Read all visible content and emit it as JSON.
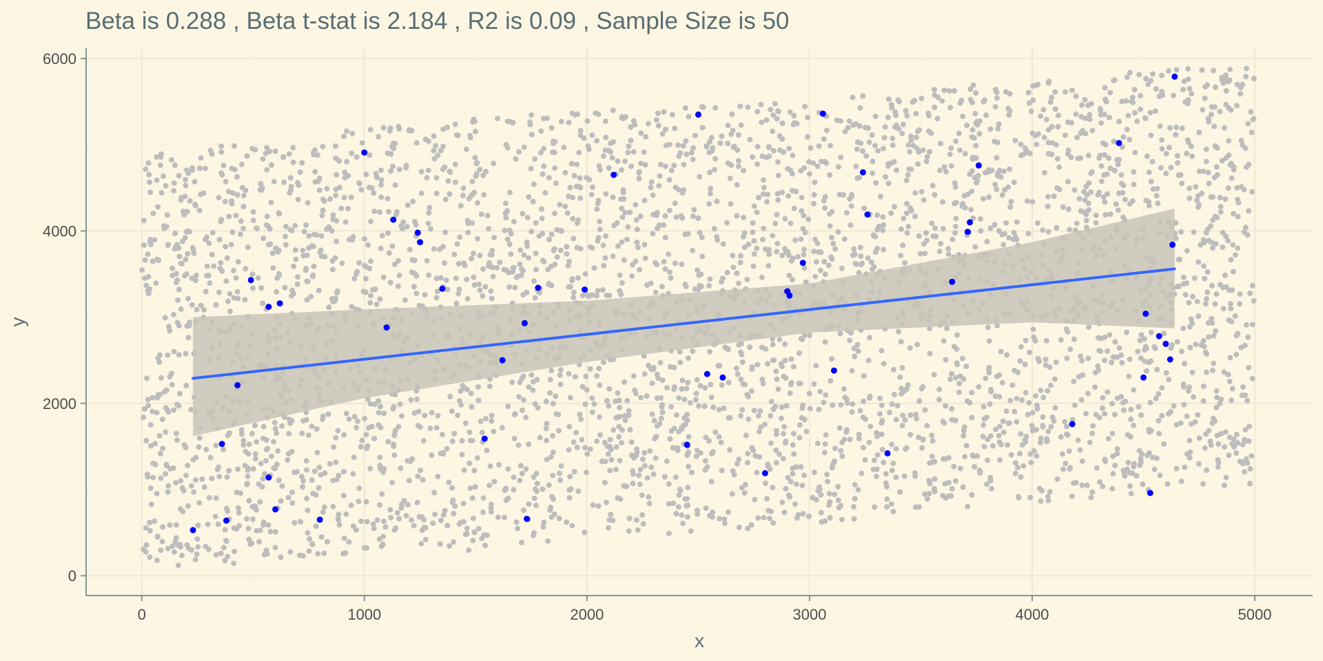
{
  "chart_data": {
    "type": "scatter",
    "title": "Beta is 0.288 , Beta t-stat is 2.184 , R2 is 0.09 , Sample Size is 50",
    "xlabel": "x",
    "ylabel": "y",
    "xlim": [
      -250,
      5260
    ],
    "ylim": [
      -230,
      6120
    ],
    "x_ticks": [
      0,
      1000,
      2000,
      3000,
      4000,
      5000
    ],
    "y_ticks": [
      0,
      2000,
      4000,
      6000
    ],
    "grid": true,
    "colors": {
      "background": "#fdf6e3",
      "grid_major": "#eee8d5",
      "grid_minor": "#f5efdc",
      "axis_line": "#839496",
      "population_points": "#bdbdbd",
      "sample_points": "#0000ff",
      "fit_line": "#3366ff",
      "confidence_band": "#c8c4b8"
    },
    "population": {
      "count": 4000,
      "x_range": [
        0,
        5000
      ],
      "lower_edge": [
        [
          0,
          100
        ],
        [
          500,
          150
        ],
        [
          1000,
          250
        ],
        [
          1500,
          300
        ],
        [
          2000,
          450
        ],
        [
          2500,
          500
        ],
        [
          3000,
          600
        ],
        [
          3500,
          750
        ],
        [
          4000,
          850
        ],
        [
          4500,
          950
        ],
        [
          5000,
          1050
        ]
      ],
      "upper_edge": [
        [
          0,
          4950
        ],
        [
          500,
          5000
        ],
        [
          1000,
          5200
        ],
        [
          1500,
          5300
        ],
        [
          2000,
          5400
        ],
        [
          2500,
          5450
        ],
        [
          3000,
          5500
        ],
        [
          3500,
          5650
        ],
        [
          4000,
          5750
        ],
        [
          4500,
          5850
        ],
        [
          5000,
          5950
        ]
      ]
    },
    "sample_points": [
      {
        "x": 230,
        "y": 530
      },
      {
        "x": 380,
        "y": 640
      },
      {
        "x": 360,
        "y": 1530
      },
      {
        "x": 430,
        "y": 2210
      },
      {
        "x": 490,
        "y": 3430
      },
      {
        "x": 570,
        "y": 1140
      },
      {
        "x": 570,
        "y": 3120
      },
      {
        "x": 600,
        "y": 770
      },
      {
        "x": 620,
        "y": 3160
      },
      {
        "x": 800,
        "y": 650
      },
      {
        "x": 1000,
        "y": 4910
      },
      {
        "x": 1100,
        "y": 2880
      },
      {
        "x": 1130,
        "y": 4130
      },
      {
        "x": 1240,
        "y": 3980
      },
      {
        "x": 1250,
        "y": 3870
      },
      {
        "x": 1350,
        "y": 3330
      },
      {
        "x": 1540,
        "y": 1590
      },
      {
        "x": 1620,
        "y": 2500
      },
      {
        "x": 1720,
        "y": 2930
      },
      {
        "x": 1730,
        "y": 660
      },
      {
        "x": 1780,
        "y": 3340
      },
      {
        "x": 1990,
        "y": 3320
      },
      {
        "x": 2120,
        "y": 4650
      },
      {
        "x": 2450,
        "y": 1520
      },
      {
        "x": 2500,
        "y": 5350
      },
      {
        "x": 2540,
        "y": 2340
      },
      {
        "x": 2610,
        "y": 2300
      },
      {
        "x": 2800,
        "y": 1190
      },
      {
        "x": 2900,
        "y": 3300
      },
      {
        "x": 2910,
        "y": 3250
      },
      {
        "x": 2970,
        "y": 3630
      },
      {
        "x": 3060,
        "y": 5360
      },
      {
        "x": 3110,
        "y": 2380
      },
      {
        "x": 3240,
        "y": 4680
      },
      {
        "x": 3260,
        "y": 4190
      },
      {
        "x": 3350,
        "y": 1420
      },
      {
        "x": 3640,
        "y": 3410
      },
      {
        "x": 3710,
        "y": 3990
      },
      {
        "x": 3720,
        "y": 4100
      },
      {
        "x": 3760,
        "y": 4760
      },
      {
        "x": 4180,
        "y": 1760
      },
      {
        "x": 4390,
        "y": 5020
      },
      {
        "x": 4500,
        "y": 2300
      },
      {
        "x": 4510,
        "y": 3040
      },
      {
        "x": 4530,
        "y": 960
      },
      {
        "x": 4570,
        "y": 2780
      },
      {
        "x": 4600,
        "y": 2690
      },
      {
        "x": 4620,
        "y": 2510
      },
      {
        "x": 4630,
        "y": 3840
      },
      {
        "x": 4640,
        "y": 5790
      }
    ],
    "fit_line": {
      "x": [
        230,
        4640
      ],
      "y": [
        2290,
        3560
      ]
    },
    "confidence_band": {
      "x": [
        230,
        1000,
        2000,
        3000,
        4000,
        4640
      ],
      "lower": [
        1620,
        2060,
        2480,
        2820,
        2940,
        2870
      ],
      "upper": [
        3000,
        3090,
        3190,
        3390,
        3870,
        4260
      ]
    }
  }
}
